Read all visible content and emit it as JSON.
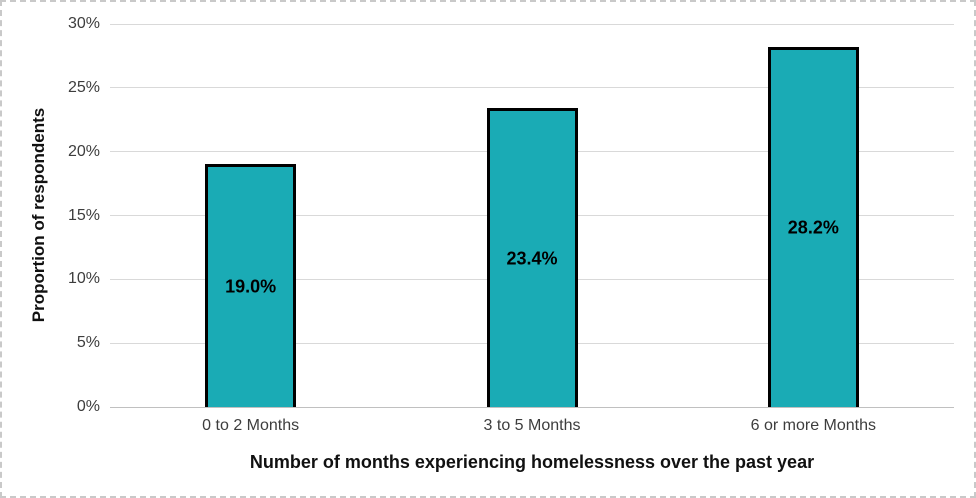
{
  "chart_data": {
    "type": "bar",
    "title": "",
    "categories": [
      "0 to 2 Months",
      "3 to 5 Months",
      "6 or more Months"
    ],
    "values": [
      19.0,
      23.4,
      28.2
    ],
    "data_labels": [
      "19.0%",
      "23.4%",
      "28.2%"
    ],
    "xlabel": "Number of months experiencing homelessness over the past year",
    "ylabel": "Proportion of respondents",
    "ylim": [
      0,
      30
    ],
    "ytick_step": 5,
    "ytick_labels": [
      "0%",
      "5%",
      "10%",
      "15%",
      "20%",
      "25%",
      "30%"
    ],
    "grid": true,
    "legend_position": "none",
    "colors": {
      "bar_fill": "#1aabb5",
      "bar_border": "#000000",
      "gridline": "#d9d9d9",
      "axis_line": "#c0c0c0",
      "tick_text": "#3d3d3d",
      "title_text": "#111111",
      "frame_border": "#c9c9c9"
    }
  }
}
